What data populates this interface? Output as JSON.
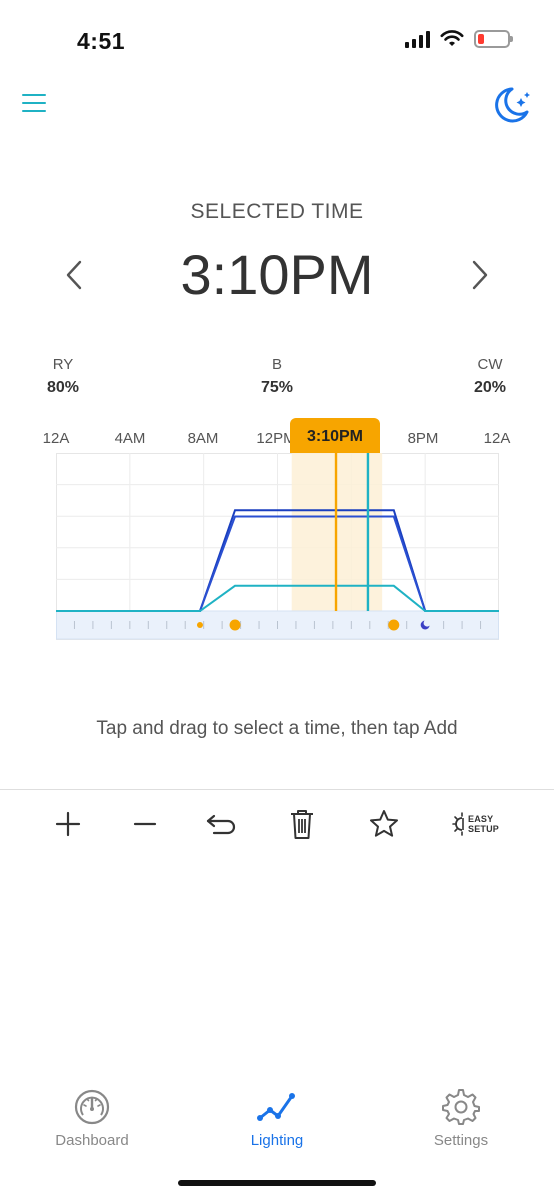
{
  "status_bar": {
    "time": "4:51"
  },
  "header": {
    "menu_icon": "hamburger-menu-icon",
    "night_icon": "moon-stars-icon"
  },
  "selected": {
    "label": "SELECTED TIME",
    "time": "3:10PM"
  },
  "channels": [
    {
      "name": "RY",
      "value": "80%"
    },
    {
      "name": "B",
      "value": "75%"
    },
    {
      "name": "CW",
      "value": "20%"
    }
  ],
  "axis": {
    "ticks": [
      "12A",
      "4AM",
      "8AM",
      "12PM",
      "8PM",
      "12A"
    ],
    "selected_label": "3:10PM"
  },
  "chart_data": {
    "type": "line",
    "x_range_hours": [
      0,
      24
    ],
    "y_range_percent": [
      0,
      100
    ],
    "selected_hour": 15.17,
    "series": [
      {
        "color": "#1a3fbf",
        "points": [
          [
            0,
            0
          ],
          [
            7.8,
            0
          ],
          [
            9.7,
            80
          ],
          [
            18.3,
            80
          ],
          [
            20,
            0
          ],
          [
            24,
            0
          ]
        ]
      },
      {
        "color": "#2a4fd1",
        "points": [
          [
            0,
            0
          ],
          [
            7.8,
            0
          ],
          [
            9.7,
            75
          ],
          [
            18.3,
            75
          ],
          [
            20,
            0
          ],
          [
            24,
            0
          ]
        ]
      },
      {
        "color": "#1fb2c4",
        "points": [
          [
            0,
            0
          ],
          [
            7.8,
            0
          ],
          [
            9.7,
            20
          ],
          [
            18.3,
            20
          ],
          [
            20,
            0
          ],
          [
            24,
            0
          ]
        ]
      }
    ],
    "markers": [
      {
        "hour": 7.8,
        "kind": "sunrise"
      },
      {
        "hour": 9.7,
        "kind": "sun"
      },
      {
        "hour": 18.3,
        "kind": "sun"
      },
      {
        "hour": 20,
        "kind": "moon"
      }
    ]
  },
  "hint": "Tap and drag to select a time, then tap Add",
  "toolbar": {
    "add_icon": "plus-icon",
    "remove_icon": "minus-icon",
    "undo_icon": "undo-icon",
    "delete_icon": "trash-icon",
    "favorite_icon": "star-icon",
    "easy_line1": "EASY",
    "easy_line2": "SETUP"
  },
  "tabs": [
    {
      "label": "Dashboard",
      "icon": "gauge-icon",
      "active": false
    },
    {
      "label": "Lighting",
      "icon": "line-chart-icon",
      "active": true
    },
    {
      "label": "Settings",
      "icon": "gear-icon",
      "active": false
    }
  ],
  "colors": {
    "accent": "#1a73e8",
    "teal": "#1fb2c4",
    "orange": "#f7a500"
  }
}
